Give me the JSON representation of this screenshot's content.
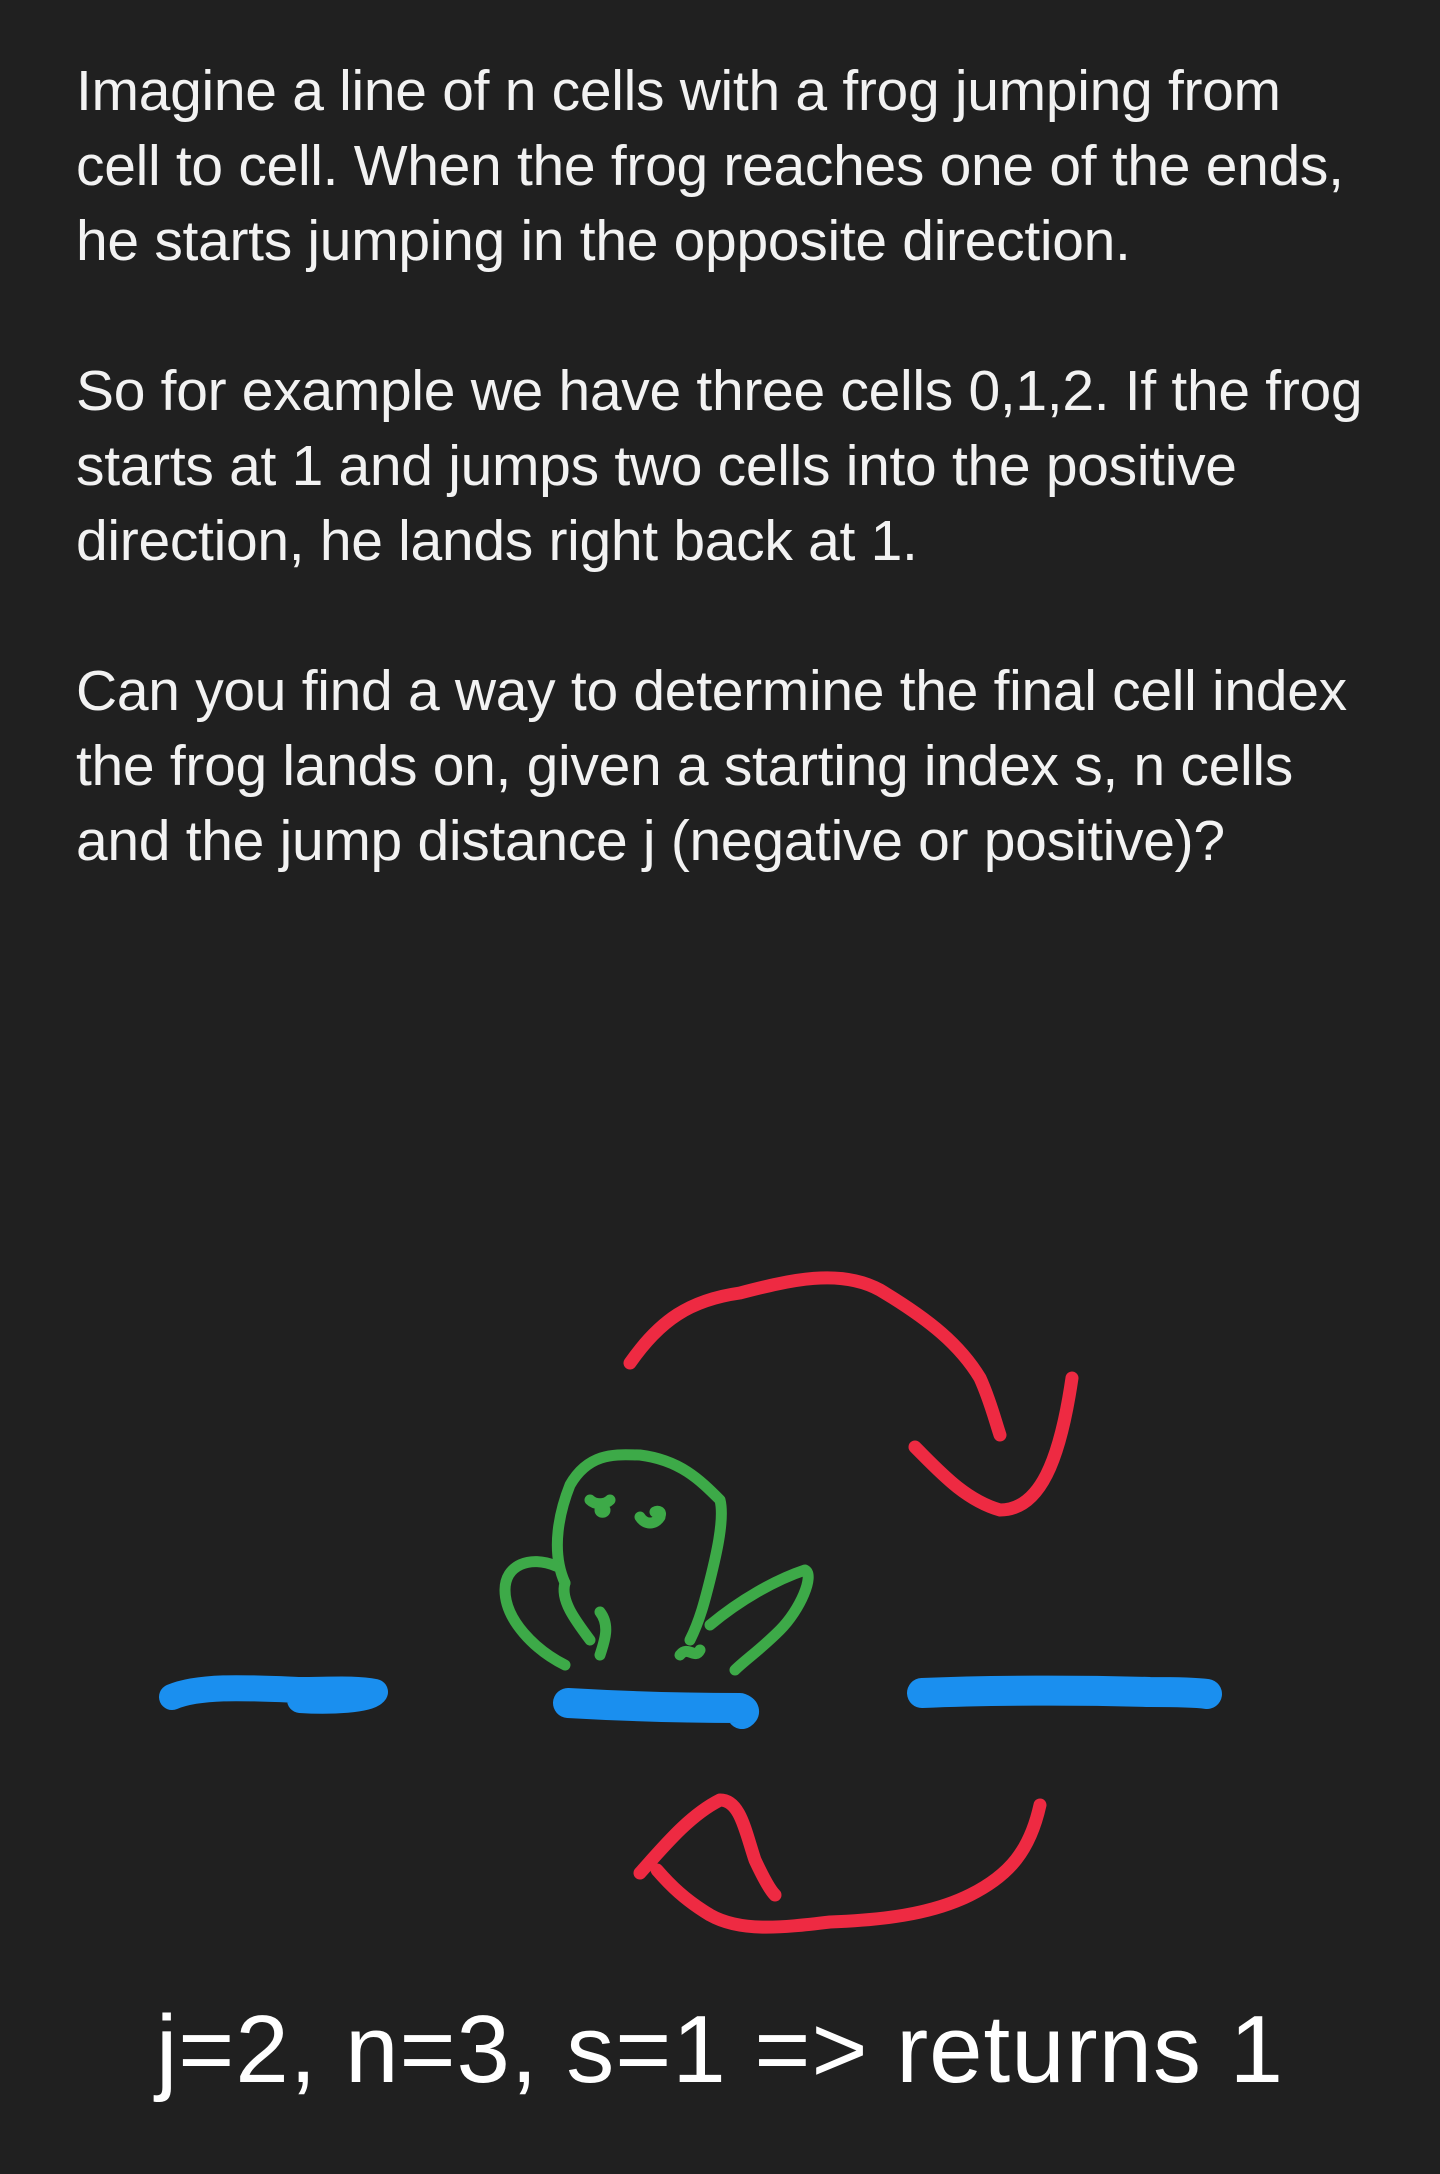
{
  "problem": {
    "paragraphs": [
      "Imagine a line of n cells with a frog jumping from cell to cell. When the frog reaches one of the ends, he starts jumping in the opposite direction.",
      "So for example we have three cells 0,1,2. If the frog starts at 1 and jumps two cells into the positive direction, he lands right back at 1.",
      "Can you find a way to determine the final cell index the frog lands on, given a starting index s, n cells and the jump distance j (negative or positive)?"
    ]
  },
  "drawing": {
    "colors": {
      "background": "#202020",
      "cell": "#1A8FEF",
      "frog": "#3DAA48",
      "arrow": "#EE2A42"
    },
    "cells": 3,
    "frog_position": 1
  },
  "example": {
    "result_text": "j=2, n=3, s=1 => returns 1"
  }
}
